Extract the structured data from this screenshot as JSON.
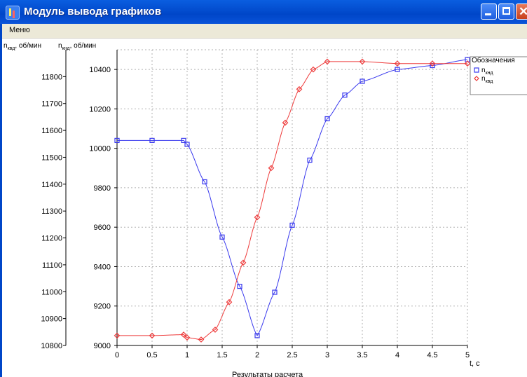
{
  "window": {
    "title": "Модуль вывода графиков"
  },
  "menu": {
    "items": [
      "Меню"
    ]
  },
  "colors": {
    "blue_series": "#3a3aee",
    "red_series": "#ee3a3a",
    "grid": "#b0b0b0"
  },
  "chart_data": {
    "type": "line",
    "title": "",
    "xlabel": "t, c",
    "bottom_caption": "Результаты расчета",
    "ylabel_left_outer": "n_квд, об/мин",
    "ylabel_left_inner": "n_кнд, об/мин",
    "ylabel_outer_parts": {
      "main": "n",
      "sub": "квд",
      "suffix": ", об/мин"
    },
    "ylabel_inner_parts": {
      "main": "n",
      "sub": "кнд",
      "suffix": ", об/мин"
    },
    "xlim": [
      0,
      5
    ],
    "x_ticks": [
      "0",
      "0.5",
      "1",
      "1.5",
      "2",
      "2.5",
      "3",
      "3.5",
      "4",
      "4.5",
      "5"
    ],
    "y_outer": {
      "lim": [
        10800,
        11900
      ],
      "ticks": [
        "10800",
        "10900",
        "11000",
        "11100",
        "11200",
        "11300",
        "11400",
        "11500",
        "11600",
        "11700",
        "11800"
      ]
    },
    "y_inner": {
      "lim": [
        9000,
        10500
      ],
      "ticks": [
        "9000",
        "9200",
        "9400",
        "9600",
        "9800",
        "10000",
        "10200",
        "10400"
      ]
    },
    "grid": true,
    "legend": {
      "position": "top-right",
      "title": "Обозначения"
    },
    "series": [
      {
        "name": "n_кнд",
        "name_main": "n",
        "name_sub": "кнд",
        "axis": "inner",
        "marker": "square",
        "color": "#3a3aee",
        "x": [
          0,
          0.5,
          0.95,
          1.0,
          1.25,
          1.5,
          1.75,
          2.0,
          2.25,
          2.5,
          2.75,
          3.0,
          3.25,
          3.5,
          4.0,
          4.5,
          5.0
        ],
        "y": [
          10040,
          10040,
          10040,
          10020,
          9830,
          9550,
          9300,
          9050,
          9270,
          9610,
          9940,
          10150,
          10270,
          10340,
          10400,
          10420,
          10450
        ]
      },
      {
        "name": "n_квд",
        "name_main": "n",
        "name_sub": "квд",
        "axis": "inner",
        "marker": "diamond",
        "color": "#ee3a3a",
        "x": [
          0,
          0.5,
          0.95,
          1.0,
          1.2,
          1.4,
          1.6,
          1.8,
          2.0,
          2.2,
          2.4,
          2.6,
          2.8,
          3.0,
          3.5,
          4.0,
          4.5,
          5.0
        ],
        "y": [
          9050,
          9050,
          9055,
          9040,
          9030,
          9080,
          9220,
          9420,
          9650,
          9900,
          10130,
          10300,
          10400,
          10440,
          10440,
          10430,
          10430,
          10430
        ]
      }
    ]
  }
}
